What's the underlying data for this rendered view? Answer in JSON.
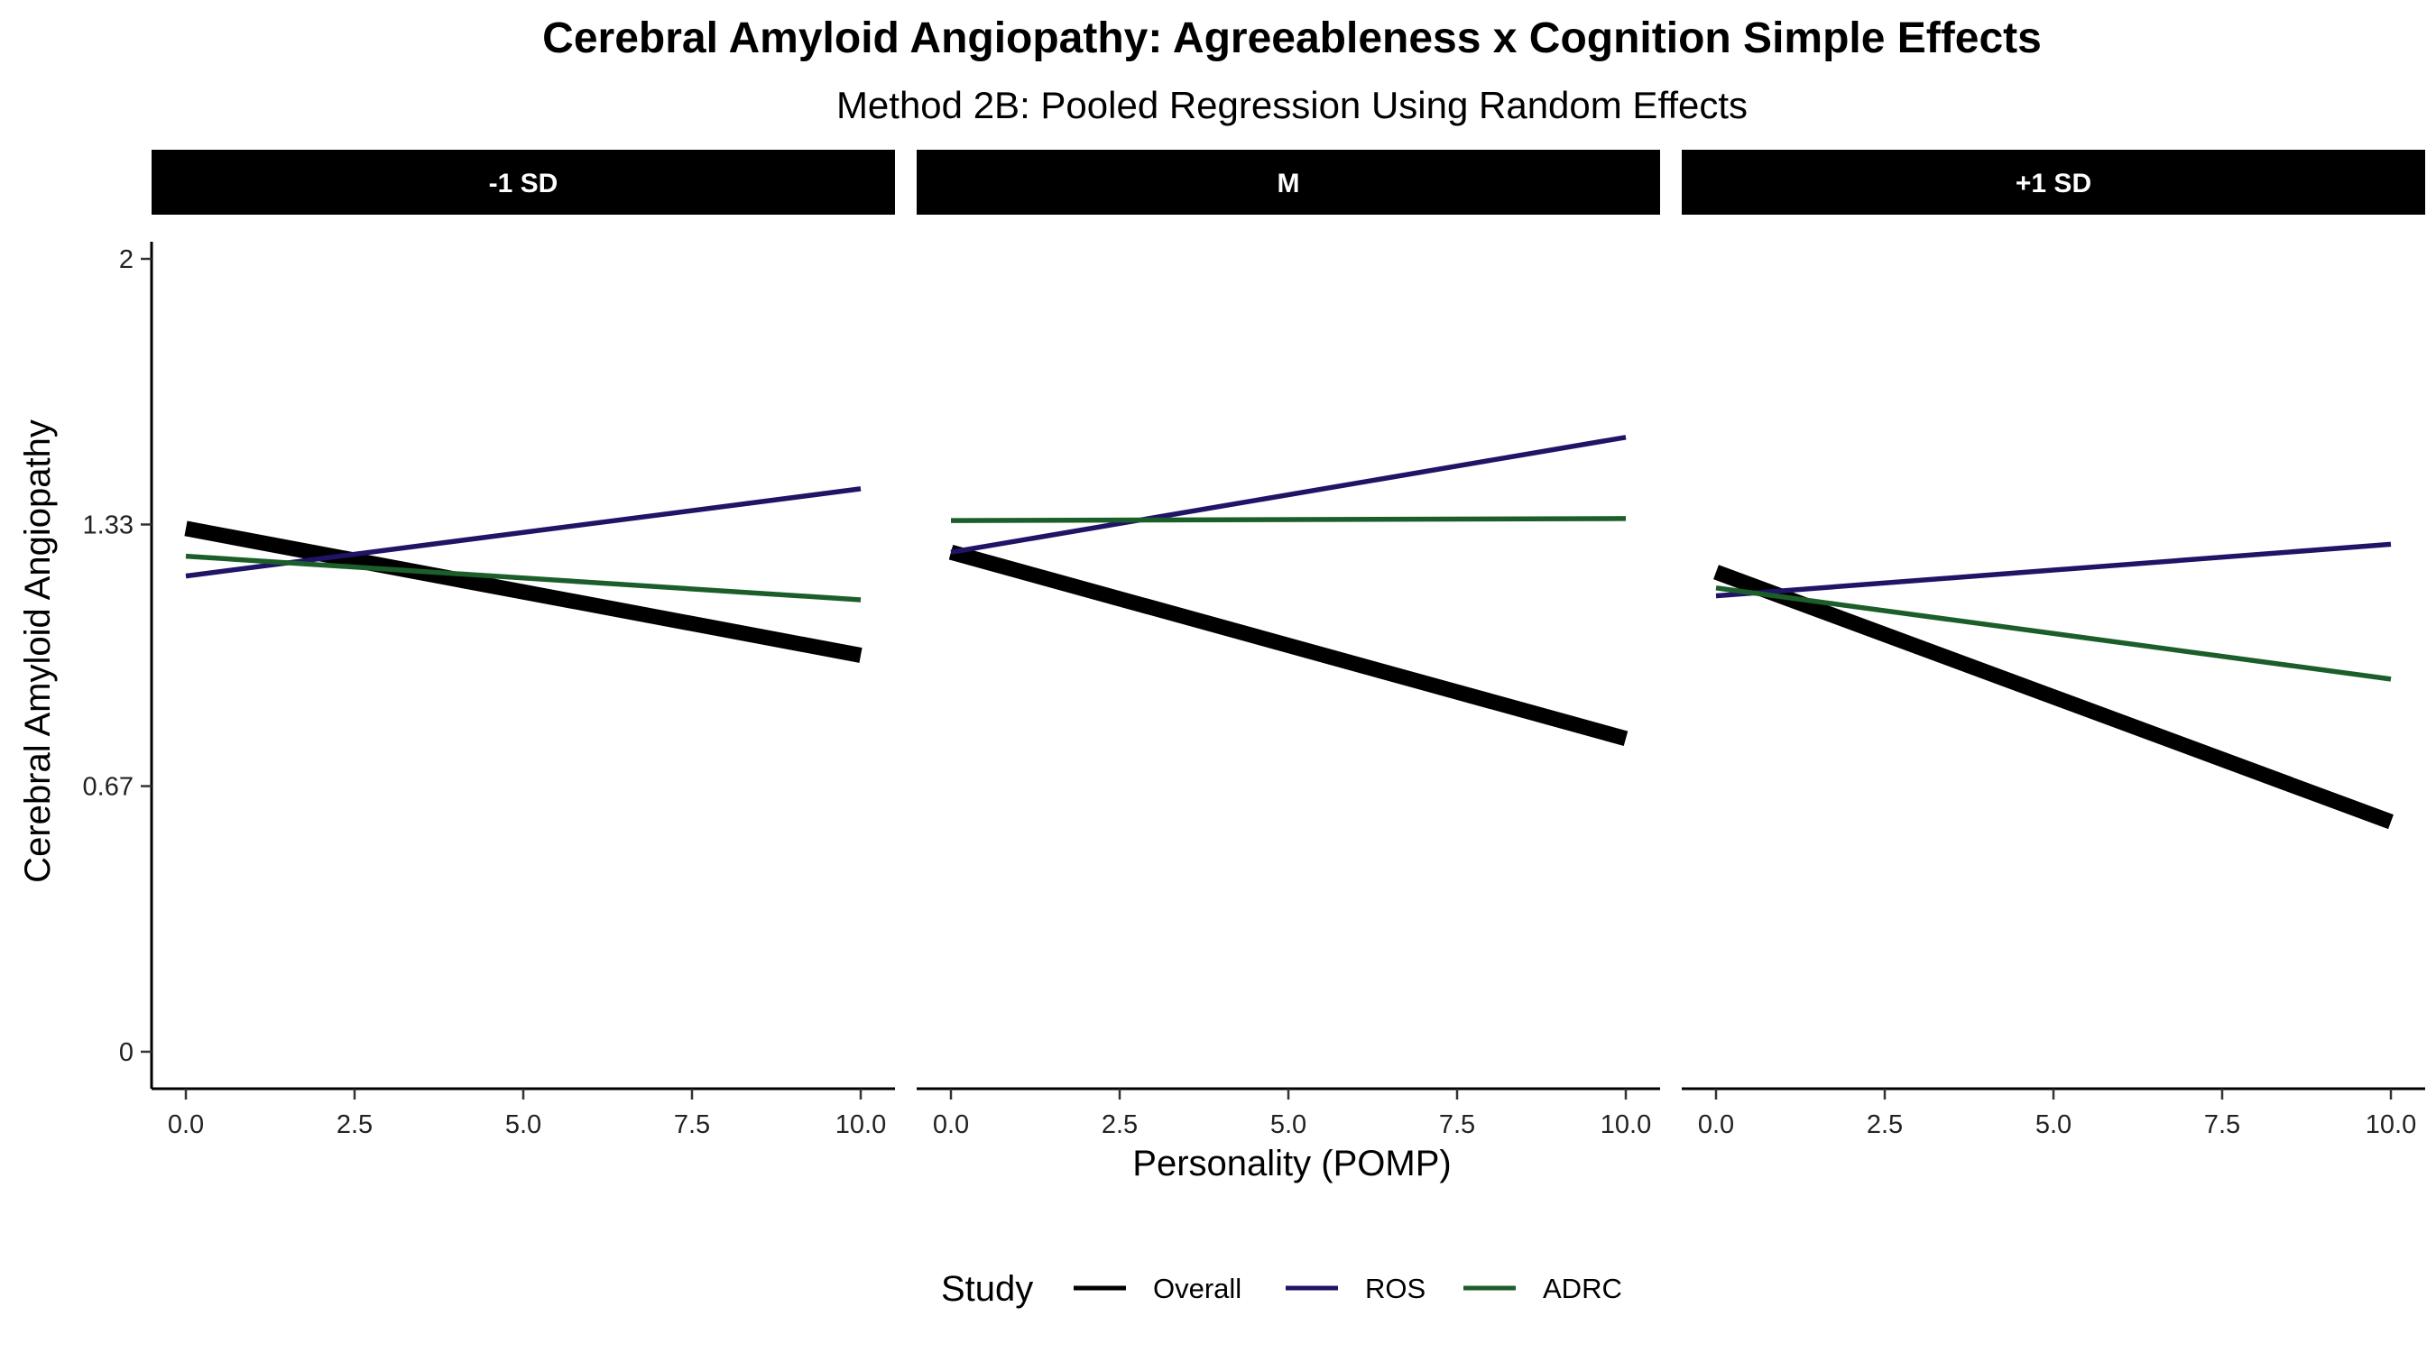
{
  "chart_data": {
    "type": "line",
    "title": "Cerebral Amyloid Angiopathy: Agreeableness x Cognition Simple Effects",
    "subtitle": "Method 2B: Pooled Regression Using Random Effects",
    "xlabel": "Personality (POMP)",
    "ylabel": "Cerebral Amyloid Angiopathy",
    "xlim": [
      0,
      10
    ],
    "ylim": [
      0,
      2
    ],
    "x_ticks": [
      "0.0",
      "2.5",
      "5.0",
      "7.5",
      "10.0"
    ],
    "y_ticks": [
      {
        "value": 0,
        "label": "0"
      },
      {
        "value": 0.67,
        "label": "0.67"
      },
      {
        "value": 1.33,
        "label": "1.33"
      },
      {
        "value": 2,
        "label": "2"
      }
    ],
    "grid": false,
    "legend": {
      "title": "Study",
      "position": "bottom",
      "entries": [
        {
          "name": "Overall",
          "color": "#000000"
        },
        {
          "name": "ROS",
          "color": "#1f1466"
        },
        {
          "name": "ADRC",
          "color": "#1c5e2a"
        }
      ]
    },
    "panels": [
      {
        "label": "-1 SD",
        "series": [
          {
            "name": "Overall",
            "x": [
              0,
              10
            ],
            "y": [
              1.32,
              1.0
            ]
          },
          {
            "name": "ROS",
            "x": [
              0,
              10
            ],
            "y": [
              1.2,
              1.42
            ]
          },
          {
            "name": "ADRC",
            "x": [
              0,
              10
            ],
            "y": [
              1.25,
              1.14
            ]
          }
        ]
      },
      {
        "label": "M",
        "series": [
          {
            "name": "Overall",
            "x": [
              0,
              10
            ],
            "y": [
              1.26,
              0.79
            ]
          },
          {
            "name": "ROS",
            "x": [
              0,
              10
            ],
            "y": [
              1.26,
              1.55
            ]
          },
          {
            "name": "ADRC",
            "x": [
              0,
              10
            ],
            "y": [
              1.34,
              1.345
            ]
          }
        ]
      },
      {
        "label": "+1 SD",
        "series": [
          {
            "name": "Overall",
            "x": [
              0,
              10
            ],
            "y": [
              1.21,
              0.58
            ]
          },
          {
            "name": "ROS",
            "x": [
              0,
              10
            ],
            "y": [
              1.15,
              1.28
            ]
          },
          {
            "name": "ADRC",
            "x": [
              0,
              10
            ],
            "y": [
              1.17,
              0.94
            ]
          }
        ]
      }
    ]
  }
}
